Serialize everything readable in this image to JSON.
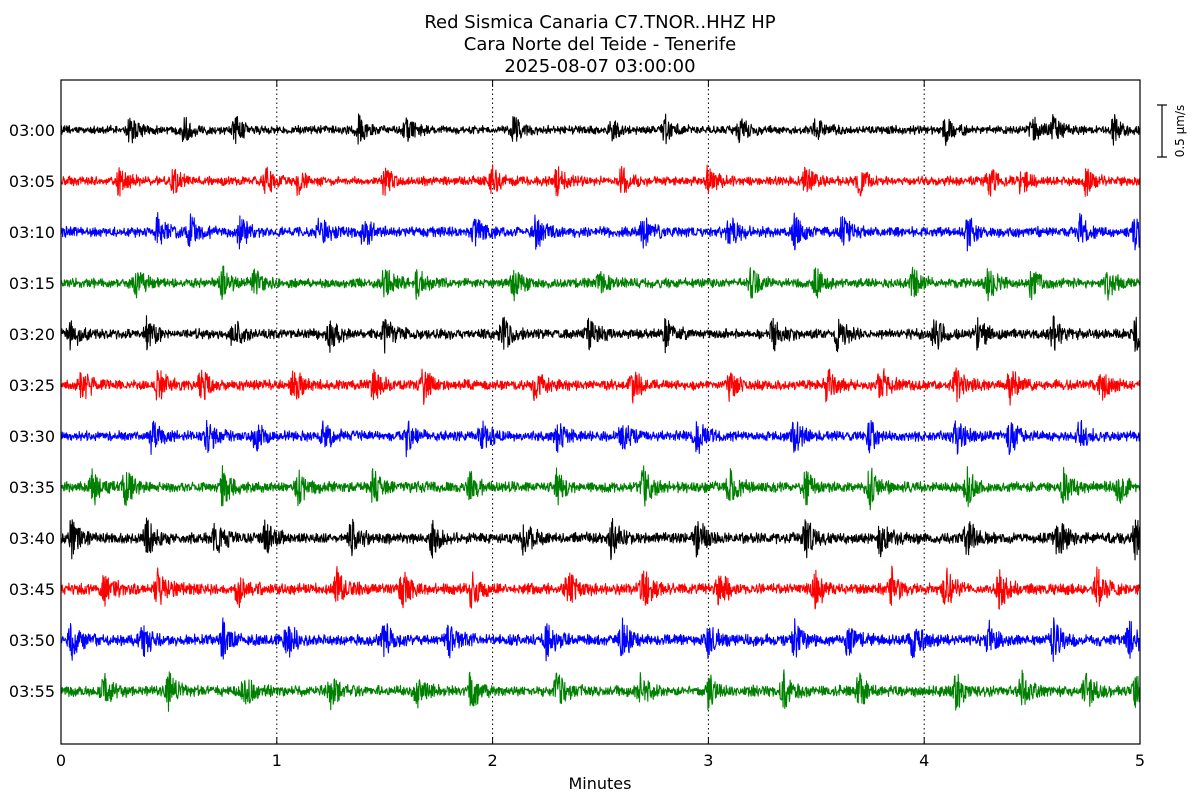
{
  "chart_data": {
    "type": "line",
    "title": [
      "Red Sismica Canaria C7.TNOR..HHZ HP",
      "Cara Norte del Teide - Tenerife",
      "2025-08-07 03:00:00"
    ],
    "xlabel": "Minutes",
    "ylabel": "",
    "xlim": [
      0,
      5
    ],
    "x_ticks": [
      0,
      1,
      2,
      3,
      4,
      5
    ],
    "x_tick_labels": [
      "0",
      "1",
      "2",
      "3",
      "4",
      "5"
    ],
    "grid_vertical_dotted": [
      1,
      2,
      3,
      4
    ],
    "scale_bar": {
      "value": 0.5,
      "label": "0.5 μm/s"
    },
    "series": [
      {
        "name": "03:00",
        "color": "#000000",
        "amplitude": 0.55,
        "bursts": [
          0.32,
          0.57,
          0.81,
          1.38,
          1.6,
          2.1,
          2.55,
          2.8,
          3.15,
          3.5,
          4.1,
          4.5,
          4.6,
          4.88
        ]
      },
      {
        "name": "03:05",
        "color": "#ff0000",
        "amplitude": 0.6,
        "bursts": [
          0.27,
          0.52,
          0.95,
          1.1,
          1.5,
          2.0,
          2.3,
          2.6,
          3.0,
          3.45,
          3.7,
          4.3,
          4.45,
          4.75
        ]
      },
      {
        "name": "03:10",
        "color": "#0000ff",
        "amplitude": 0.7,
        "bursts": [
          0.45,
          0.6,
          0.83,
          1.2,
          1.4,
          1.92,
          2.2,
          2.7,
          3.1,
          3.4,
          3.62,
          4.2,
          4.72,
          4.98
        ]
      },
      {
        "name": "03:15",
        "color": "#008000",
        "amplitude": 0.65,
        "bursts": [
          0.35,
          0.75,
          0.9,
          1.5,
          1.65,
          2.1,
          2.5,
          3.2,
          3.5,
          3.95,
          4.3,
          4.5,
          4.85
        ]
      },
      {
        "name": "03:20",
        "color": "#000000",
        "amplitude": 0.7,
        "bursts": [
          0.05,
          0.4,
          0.8,
          1.25,
          1.5,
          2.05,
          2.45,
          2.8,
          3.3,
          3.6,
          4.05,
          4.25,
          4.6,
          4.98
        ]
      },
      {
        "name": "03:25",
        "color": "#ff0000",
        "amplitude": 0.7,
        "bursts": [
          0.1,
          0.45,
          0.65,
          1.08,
          1.45,
          1.68,
          2.2,
          2.65,
          3.1,
          3.55,
          3.8,
          4.15,
          4.4,
          4.82
        ]
      },
      {
        "name": "03:30",
        "color": "#0000ff",
        "amplitude": 0.7,
        "bursts": [
          0.42,
          0.68,
          0.9,
          1.22,
          1.6,
          1.95,
          2.3,
          2.6,
          2.95,
          3.4,
          3.75,
          4.15,
          4.4,
          4.72
        ]
      },
      {
        "name": "03:35",
        "color": "#008000",
        "amplitude": 0.75,
        "bursts": [
          0.15,
          0.3,
          0.75,
          1.1,
          1.45,
          1.9,
          2.3,
          2.7,
          3.1,
          3.45,
          3.75,
          4.2,
          4.65,
          4.9
        ]
      },
      {
        "name": "03:40",
        "color": "#000000",
        "amplitude": 0.8,
        "bursts": [
          0.05,
          0.4,
          0.72,
          0.95,
          1.35,
          1.72,
          2.15,
          2.55,
          2.95,
          3.45,
          3.8,
          4.2,
          4.62,
          4.98
        ]
      },
      {
        "name": "03:45",
        "color": "#ff0000",
        "amplitude": 0.8,
        "bursts": [
          0.2,
          0.45,
          0.82,
          1.28,
          1.58,
          1.9,
          2.35,
          2.7,
          3.05,
          3.5,
          3.85,
          4.1,
          4.35,
          4.8
        ]
      },
      {
        "name": "03:50",
        "color": "#0000ff",
        "amplitude": 0.8,
        "bursts": [
          0.05,
          0.38,
          0.75,
          1.05,
          1.5,
          1.8,
          2.25,
          2.6,
          3.0,
          3.4,
          3.65,
          3.95,
          4.3,
          4.6,
          4.95
        ]
      },
      {
        "name": "03:55",
        "color": "#008000",
        "amplitude": 0.75,
        "bursts": [
          0.2,
          0.5,
          0.85,
          1.25,
          1.65,
          1.9,
          2.3,
          2.68,
          3.0,
          3.35,
          3.7,
          4.15,
          4.45,
          4.75,
          4.98
        ]
      }
    ]
  }
}
